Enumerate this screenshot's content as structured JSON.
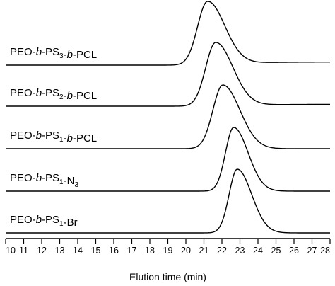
{
  "chart_data": {
    "type": "line",
    "xlabel": "Elution time (min)",
    "ylabel": "",
    "title": "",
    "xlim": [
      10,
      28
    ],
    "x_ticks": [
      10,
      11,
      12,
      13,
      14,
      15,
      16,
      17,
      18,
      19,
      20,
      21,
      22,
      23,
      24,
      25,
      26,
      27,
      28
    ],
    "series": [
      {
        "name": "PEO-b-PS3-b-PCL",
        "label_parts": [
          {
            "t": "PEO-",
            "s": "normal"
          },
          {
            "t": "b",
            "s": "italic"
          },
          {
            "t": "-PS",
            "s": "normal"
          },
          {
            "t": "3",
            "s": "sub"
          },
          {
            "t": "-",
            "s": "normal"
          },
          {
            "t": "b",
            "s": "italic"
          },
          {
            "t": "-PCL",
            "s": "normal"
          }
        ],
        "peak_time": 21.2,
        "sigma_left": 0.55,
        "sigma_right": 0.95,
        "tail_rise": 0.05,
        "relative_height": 1.0
      },
      {
        "name": "PEO-b-PS2-b-PCL",
        "label_parts": [
          {
            "t": "PEO-",
            "s": "normal"
          },
          {
            "t": "b",
            "s": "italic"
          },
          {
            "t": "-PS",
            "s": "normal"
          },
          {
            "t": "2",
            "s": "sub"
          },
          {
            "t": "-",
            "s": "normal"
          },
          {
            "t": "b",
            "s": "italic"
          },
          {
            "t": "-PCL",
            "s": "normal"
          }
        ],
        "peak_time": 21.65,
        "sigma_left": 0.55,
        "sigma_right": 0.95,
        "tail_rise": 0.03,
        "relative_height": 1.0
      },
      {
        "name": "PEO-b-PS1-b-PCL",
        "label_parts": [
          {
            "t": "PEO-",
            "s": "normal"
          },
          {
            "t": "b",
            "s": "italic"
          },
          {
            "t": "-PS",
            "s": "normal"
          },
          {
            "t": "1",
            "s": "sub"
          },
          {
            "t": "-",
            "s": "normal"
          },
          {
            "t": "b",
            "s": "italic"
          },
          {
            "t": "-PCL",
            "s": "normal"
          }
        ],
        "peak_time": 22.05,
        "sigma_left": 0.55,
        "sigma_right": 0.95,
        "tail_rise": 0.0,
        "relative_height": 1.0
      },
      {
        "name": "PEO-b-PS1-N3",
        "label_parts": [
          {
            "t": "PEO-",
            "s": "normal"
          },
          {
            "t": "b",
            "s": "italic"
          },
          {
            "t": "-PS",
            "s": "normal"
          },
          {
            "t": "1",
            "s": "sub"
          },
          {
            "t": "-N",
            "s": "normal"
          },
          {
            "t": "3",
            "s": "sub"
          }
        ],
        "peak_time": 22.65,
        "sigma_left": 0.45,
        "sigma_right": 0.8,
        "tail_rise": 0.0,
        "relative_height": 1.0
      },
      {
        "name": "PEO-b-PS1-Br",
        "label_parts": [
          {
            "t": "PEO-",
            "s": "normal"
          },
          {
            "t": "b",
            "s": "italic"
          },
          {
            "t": "-PS",
            "s": "normal"
          },
          {
            "t": "1",
            "s": "sub"
          },
          {
            "t": "-Br",
            "s": "normal"
          }
        ],
        "peak_time": 22.85,
        "sigma_left": 0.45,
        "sigma_right": 0.8,
        "tail_rise": 0.0,
        "relative_height": 1.0
      }
    ]
  }
}
